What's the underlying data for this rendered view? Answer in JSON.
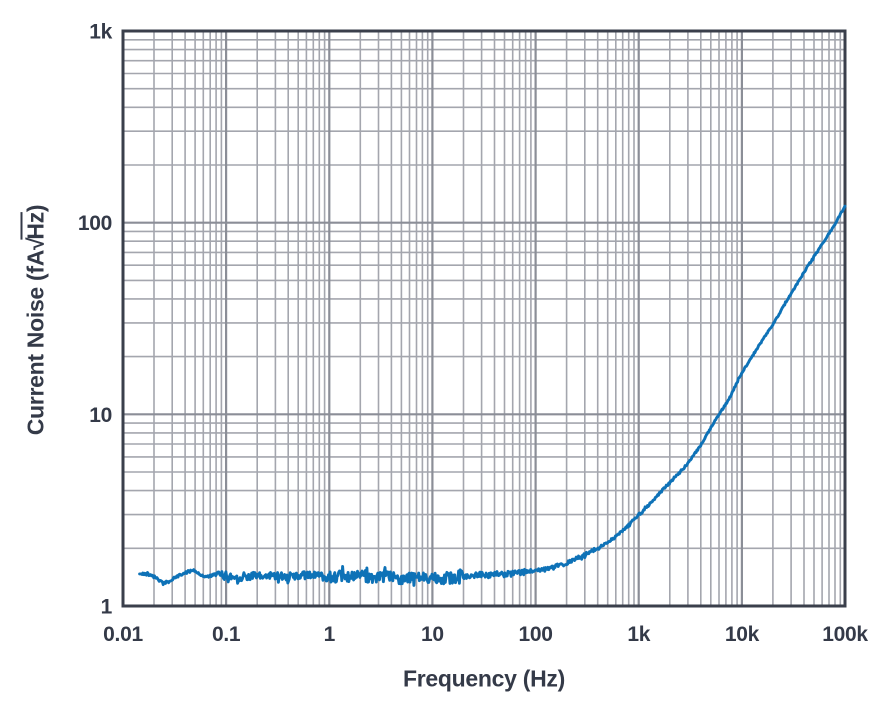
{
  "chart_data": {
    "type": "line",
    "title": "",
    "description": "Log-log plot of current noise density versus frequency: flat ~1.4 fA/rtHz floor below ~100 Hz with random jitter, rising to ~120 fA/rtHz at 100 kHz",
    "x_axis": {
      "label": "Frequency (Hz)",
      "scale": "log",
      "min": 0.01,
      "max": 100000,
      "tick_values": [
        0.01,
        0.1,
        1,
        10,
        100,
        1000,
        10000,
        100000
      ],
      "tick_labels": [
        "0.01",
        "0.1",
        "1",
        "10",
        "100",
        "1k",
        "10k",
        "100k"
      ],
      "minor_gridlines": true
    },
    "y_axis": {
      "label": "Current Noise (fA√Hz)",
      "label_parts": {
        "pre": "Current Noise (fA",
        "radical": "√",
        "radicand": "Hz",
        "post": ")"
      },
      "scale": "log",
      "min": 1,
      "max": 1000,
      "tick_values": [
        1,
        10,
        100,
        1000
      ],
      "tick_labels": [
        "1",
        "10",
        "100",
        "1k"
      ],
      "minor_gridlines": true
    },
    "grid": {
      "major": true,
      "minor": true,
      "style": "full log-log grid"
    },
    "legend": "none",
    "series": [
      {
        "name": "current-noise-density",
        "color": "#0e72b7",
        "points": [
          [
            0.0145,
            1.47
          ],
          [
            0.017,
            1.47
          ],
          [
            0.02,
            1.44
          ],
          [
            0.024,
            1.32
          ],
          [
            0.028,
            1.34
          ],
          [
            0.033,
            1.42
          ],
          [
            0.04,
            1.49
          ],
          [
            0.048,
            1.55
          ],
          [
            0.055,
            1.46
          ],
          [
            0.065,
            1.42
          ],
          [
            0.08,
            1.46
          ],
          [
            0.1,
            1.44
          ],
          [
            0.13,
            1.41
          ],
          [
            0.17,
            1.44
          ],
          [
            0.22,
            1.42
          ],
          [
            0.3,
            1.45
          ],
          [
            0.4,
            1.42
          ],
          [
            0.55,
            1.44
          ],
          [
            0.7,
            1.46
          ],
          [
            0.9,
            1.42
          ],
          [
            1.2,
            1.43
          ],
          [
            1.6,
            1.41
          ],
          [
            2.2,
            1.43
          ],
          [
            3,
            1.4
          ],
          [
            4,
            1.42
          ],
          [
            5.5,
            1.39
          ],
          [
            7.5,
            1.41
          ],
          [
            10,
            1.42
          ],
          [
            13,
            1.4
          ],
          [
            17,
            1.42
          ],
          [
            22,
            1.44
          ],
          [
            30,
            1.46
          ],
          [
            40,
            1.46
          ],
          [
            55,
            1.47
          ],
          [
            75,
            1.5
          ],
          [
            100,
            1.53
          ],
          [
            140,
            1.58
          ],
          [
            200,
            1.67
          ],
          [
            280,
            1.82
          ],
          [
            400,
            2.0
          ],
          [
            550,
            2.22
          ],
          [
            750,
            2.55
          ],
          [
            1000,
            3.0
          ],
          [
            1400,
            3.6
          ],
          [
            2000,
            4.4
          ],
          [
            2800,
            5.3
          ],
          [
            4000,
            6.9
          ],
          [
            5500,
            9.3
          ],
          [
            7500,
            12.0
          ],
          [
            10000,
            16.5
          ],
          [
            14000,
            22
          ],
          [
            20000,
            29.5
          ],
          [
            28000,
            40
          ],
          [
            40000,
            55
          ],
          [
            55000,
            72
          ],
          [
            75000,
            93
          ],
          [
            100000,
            122
          ]
        ],
        "noise_jitter_bands": [
          {
            "max_f": 0.08,
            "amp": 0.015
          },
          {
            "max_f": 1,
            "amp": 0.05
          },
          {
            "max_f": 20,
            "amp": 0.07
          },
          {
            "max_f": 80,
            "amp": 0.035
          },
          {
            "max_f": 400,
            "amp": 0.022
          },
          {
            "max_f": 3000,
            "amp": 0.015
          },
          {
            "max_f": 100000,
            "amp": 0.01
          }
        ]
      }
    ]
  },
  "colors": {
    "line": "#0e72b7",
    "grid_minor": "#a4a6ae",
    "grid_major": "#8b8e97",
    "frame": "#3a3f4b",
    "text": "#343a48",
    "background": "#ffffff"
  }
}
